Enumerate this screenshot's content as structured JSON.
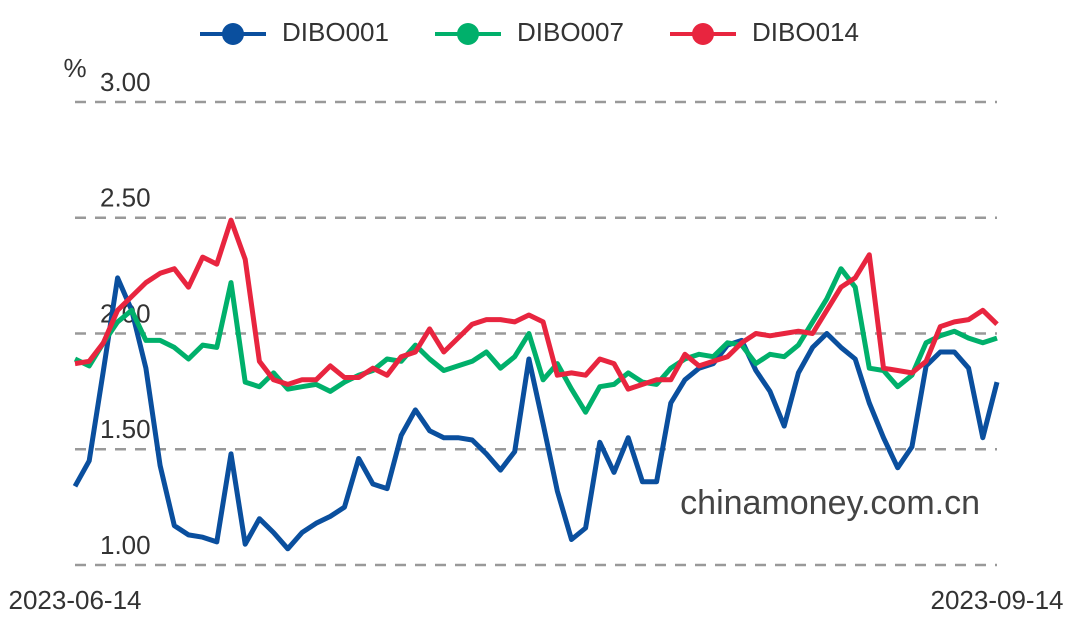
{
  "chart_data": {
    "type": "line",
    "y_label": "%",
    "watermark": "chinamoney.com.cn",
    "categories": [
      "2023-06-14",
      null,
      null,
      null,
      null,
      null,
      null,
      null,
      null,
      null,
      null,
      null,
      null,
      null,
      null,
      null,
      null,
      null,
      null,
      null,
      null,
      null,
      null,
      null,
      null,
      null,
      null,
      null,
      null,
      null,
      null,
      null,
      null,
      null,
      null,
      null,
      null,
      null,
      null,
      null,
      null,
      null,
      null,
      null,
      null,
      null,
      null,
      null,
      null,
      null,
      null,
      null,
      null,
      null,
      null,
      null,
      null,
      null,
      null,
      null,
      null,
      null,
      null,
      null,
      null,
      "2023-09-14"
    ],
    "series": [
      {
        "name": "DIBO001",
        "color": "#0a4f9e",
        "values": [
          1.34,
          1.45,
          1.84,
          2.24,
          2.1,
          1.85,
          1.43,
          1.17,
          1.13,
          1.12,
          1.1,
          1.48,
          1.09,
          1.2,
          1.14,
          1.07,
          1.14,
          1.18,
          1.21,
          1.25,
          1.46,
          1.35,
          1.33,
          1.56,
          1.67,
          1.58,
          1.55,
          1.55,
          1.54,
          1.48,
          1.41,
          1.49,
          1.89,
          1.61,
          1.32,
          1.11,
          1.16,
          1.53,
          1.4,
          1.55,
          1.36,
          1.36,
          1.7,
          1.8,
          1.85,
          1.87,
          1.95,
          1.97,
          1.84,
          1.75,
          1.6,
          1.83,
          1.94,
          2.0,
          1.94,
          1.89,
          1.7,
          1.55,
          1.42,
          1.51,
          1.86,
          1.92,
          1.92,
          1.85,
          1.55,
          1.79
        ]
      },
      {
        "name": "DIBO007",
        "color": "#00b06b",
        "values": [
          1.89,
          1.86,
          1.96,
          2.05,
          2.1,
          1.97,
          1.97,
          1.94,
          1.89,
          1.95,
          1.94,
          2.22,
          1.79,
          1.77,
          1.83,
          1.76,
          1.77,
          1.78,
          1.75,
          1.79,
          1.82,
          1.84,
          1.89,
          1.88,
          1.95,
          1.89,
          1.84,
          1.86,
          1.88,
          1.92,
          1.85,
          1.9,
          2.0,
          1.8,
          1.87,
          1.76,
          1.66,
          1.77,
          1.78,
          1.83,
          1.79,
          1.78,
          1.85,
          1.89,
          1.91,
          1.9,
          1.96,
          1.95,
          1.87,
          1.91,
          1.9,
          1.95,
          2.05,
          2.15,
          2.28,
          2.2,
          1.85,
          1.84,
          1.77,
          1.82,
          1.96,
          1.99,
          2.01,
          1.98,
          1.96,
          1.98
        ]
      },
      {
        "name": "DIBO014",
        "color": "#e8253f",
        "values": [
          1.87,
          1.88,
          1.96,
          2.1,
          2.16,
          2.22,
          2.26,
          2.28,
          2.2,
          2.33,
          2.3,
          2.49,
          2.32,
          1.88,
          1.8,
          1.78,
          1.8,
          1.8,
          1.86,
          1.81,
          1.81,
          1.85,
          1.82,
          1.9,
          1.92,
          2.02,
          1.92,
          1.98,
          2.04,
          2.06,
          2.06,
          2.05,
          2.08,
          2.05,
          1.82,
          1.83,
          1.82,
          1.89,
          1.87,
          1.76,
          1.78,
          1.8,
          1.8,
          1.91,
          1.86,
          1.88,
          1.9,
          1.96,
          2.0,
          1.99,
          2.0,
          2.01,
          2.0,
          2.1,
          2.2,
          2.24,
          2.34,
          1.85,
          1.84,
          1.83,
          1.88,
          2.03,
          2.05,
          2.06,
          2.1,
          2.04
        ]
      }
    ],
    "ylim": [
      1,
      3
    ],
    "yticks": [
      {
        "value": 1,
        "label": "1.00"
      },
      {
        "value": 1.5,
        "label": "1.50"
      },
      {
        "value": 2,
        "label": "2.00"
      },
      {
        "value": 2.5,
        "label": "2.50"
      },
      {
        "value": 3,
        "label": "3.00"
      }
    ],
    "grid": true
  }
}
